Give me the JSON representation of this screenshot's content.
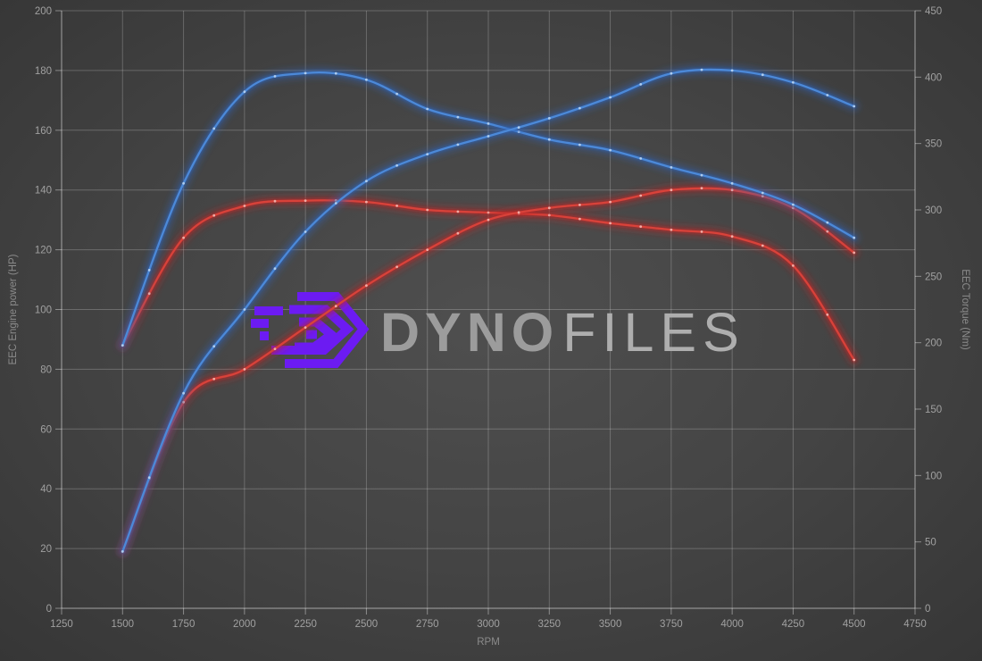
{
  "watermark": {
    "primary": "DYNO",
    "secondary": "FILES",
    "glyph_color": "#6c1bf2"
  },
  "chart_data": {
    "type": "line",
    "title": "",
    "xlabel": "RPM",
    "ylabel_left": "EEC Engine power (HP)",
    "ylabel_right": "EEC Torque (Nm)",
    "grid": true,
    "legend": false,
    "xlim": [
      1250,
      4750
    ],
    "ylim_left": [
      0,
      200
    ],
    "ylim_right": [
      0,
      450
    ],
    "x_ticks": [
      1250,
      1500,
      1750,
      2000,
      2250,
      2500,
      2750,
      3000,
      3250,
      3500,
      3750,
      4000,
      4250,
      4500,
      4750
    ],
    "y_ticks_left": [
      0,
      20,
      40,
      60,
      80,
      100,
      120,
      140,
      160,
      180,
      200
    ],
    "y_ticks_right": [
      0,
      50,
      100,
      150,
      200,
      250,
      300,
      350,
      400,
      450
    ],
    "x": [
      1500,
      1750,
      2000,
      2250,
      2500,
      2750,
      3000,
      3250,
      3500,
      3750,
      4000,
      4250,
      4500
    ],
    "series": [
      {
        "id": "torque-red",
        "axis": "right",
        "unit": "Nm",
        "color_core": "#d8423a",
        "color_halo": "#bb2626",
        "color_marker": "#f6bcb6",
        "values": [
          198,
          279,
          303,
          307,
          306,
          300,
          298,
          296,
          290,
          285,
          280,
          258,
          187
        ]
      },
      {
        "id": "power-red",
        "axis": "left",
        "unit": "HP",
        "color_core": "#d8423a",
        "color_halo": "#bb2626",
        "color_marker": "#f6bcb6",
        "values": [
          19,
          69,
          80,
          94,
          108,
          120,
          130,
          134,
          136,
          140,
          140,
          134,
          119
        ]
      },
      {
        "id": "torque-blue",
        "axis": "right",
        "unit": "Nm",
        "color_core": "#4c89d8",
        "color_halo": "#2c62b8",
        "color_marker": "#bed8f5",
        "values": [
          198,
          320,
          389,
          403,
          398,
          376,
          365,
          353,
          345,
          332,
          320,
          304,
          279
        ]
      },
      {
        "id": "power-blue",
        "axis": "left",
        "unit": "HP",
        "color_core": "#4c89d8",
        "color_halo": "#2c62b8",
        "color_marker": "#bed8f5",
        "values": [
          19,
          72,
          100,
          126,
          143,
          152,
          158,
          164,
          171,
          179,
          180,
          176,
          168
        ]
      }
    ]
  }
}
